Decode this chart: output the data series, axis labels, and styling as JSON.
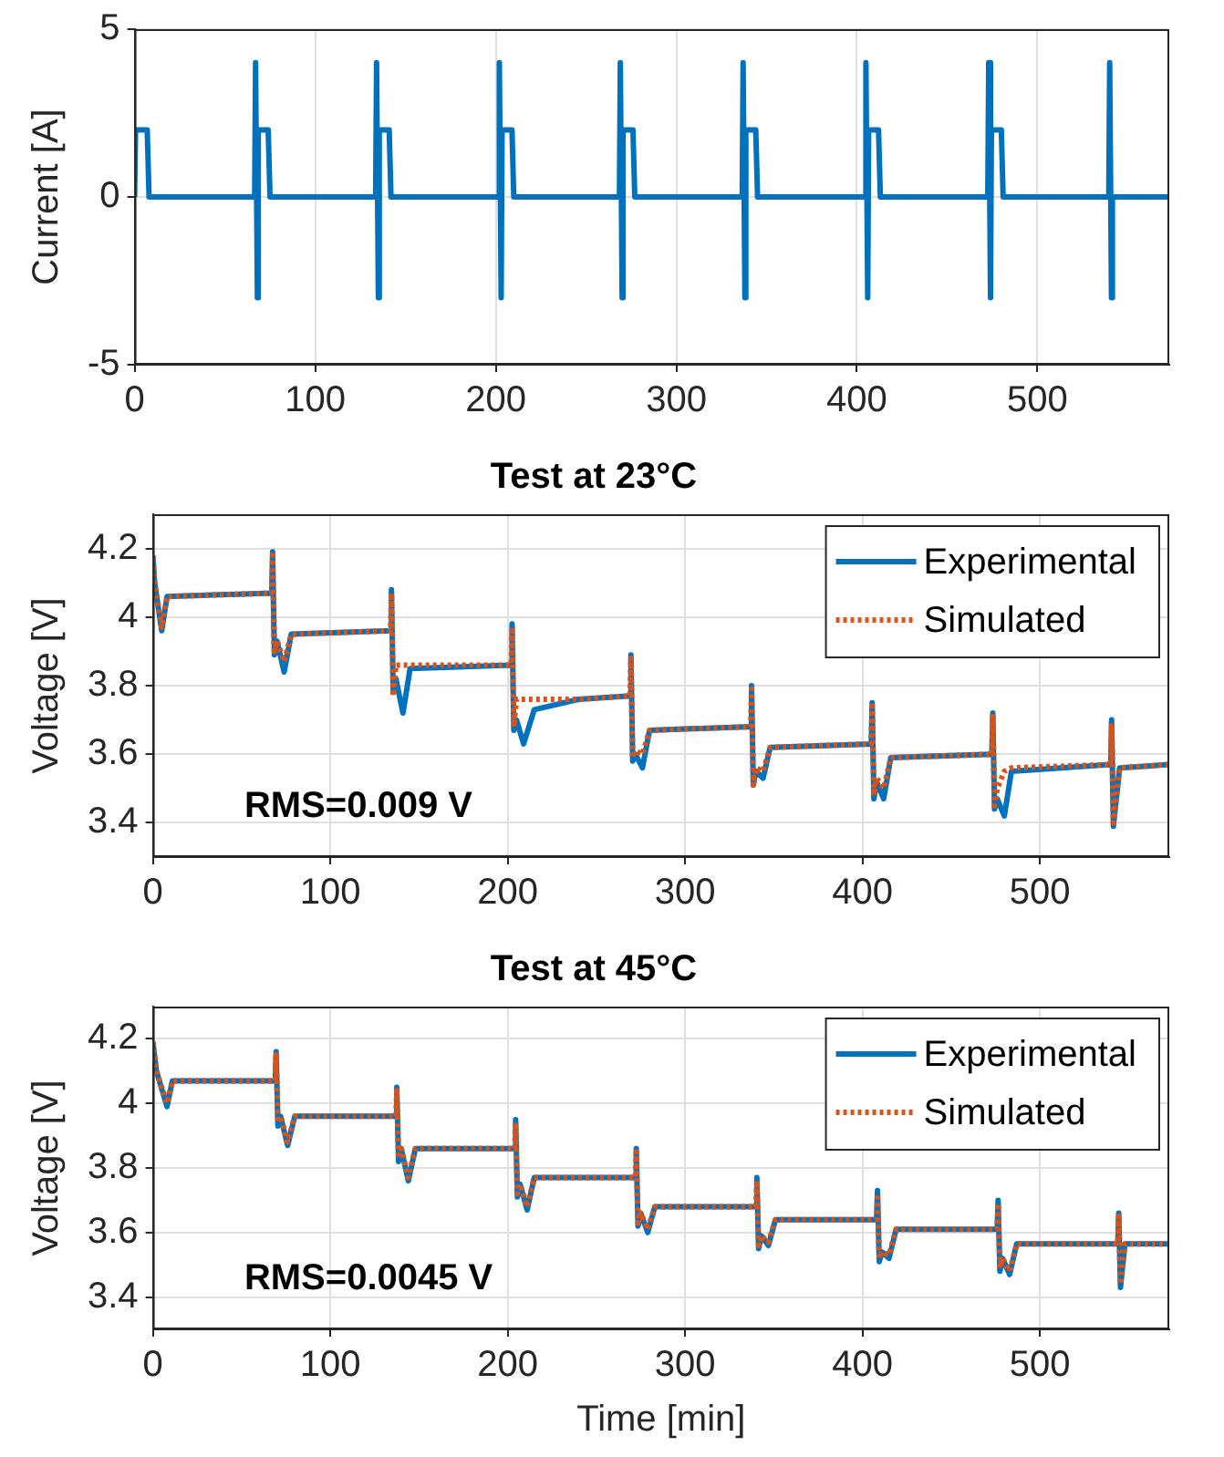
{
  "chart_data": [
    {
      "type": "line",
      "ylabel": "Current [A]",
      "xlim": [
        0,
        573
      ],
      "xticks": [
        0,
        100,
        200,
        300,
        400,
        500
      ],
      "ylim": [
        -5,
        5
      ],
      "yticks": [
        -5,
        0,
        5
      ],
      "grid": true,
      "legend": false,
      "marker": "none",
      "series": [
        {
          "color": "#0072bd",
          "line_style": "solid",
          "x": [
            0,
            0.5,
            7,
            8,
            66.5,
            67,
            68,
            68.5,
            74,
            75,
            133.5,
            134,
            135,
            135.5,
            141,
            142,
            201.5,
            202,
            203,
            203.5,
            209,
            210,
            268.5,
            269,
            270,
            270.5,
            276,
            277,
            336.5,
            337,
            338,
            338.5,
            344,
            345,
            404.5,
            405,
            406,
            406.5,
            412,
            413,
            472.5,
            473,
            474,
            474.5,
            480,
            481,
            539.5,
            540,
            541,
            541.5,
            573
          ],
          "values": [
            0,
            2,
            2,
            0,
            0,
            4,
            -3,
            2,
            2,
            0,
            0,
            4,
            -3,
            2,
            2,
            0,
            0,
            4,
            -3,
            2,
            2,
            0,
            0,
            4,
            -3,
            2,
            2,
            0,
            0,
            4,
            -3,
            2,
            2,
            0,
            0,
            4,
            -3,
            2,
            2,
            0,
            0,
            4,
            -3,
            2,
            2,
            0,
            0,
            4,
            -3,
            0,
            0
          ]
        }
      ]
    },
    {
      "type": "line",
      "title": "Test at 23°C",
      "ylabel": "Voltage [V]",
      "xlim": [
        0,
        573
      ],
      "xticks": [
        0,
        100,
        200,
        300,
        400,
        500
      ],
      "ylim": [
        3.3,
        4.3
      ],
      "yticks": [
        3.4,
        3.6,
        3.8,
        4,
        4.2
      ],
      "grid": true,
      "legend": "top right",
      "marker": "none",
      "annotations": [
        "RMS=0.009 V"
      ],
      "series": [
        {
          "name": "Experimental",
          "color": "#0072bd",
          "line_style": "solid",
          "x": [
            0,
            1,
            5,
            8,
            67,
            67.5,
            68.5,
            70,
            74,
            78,
            134,
            134.5,
            135.5,
            137,
            141,
            145,
            202,
            202.5,
            203.5,
            205,
            209,
            215,
            240,
            269,
            269.5,
            270.5,
            272,
            276,
            280,
            337,
            337.5,
            338.5,
            340,
            344,
            348,
            405,
            405.5,
            406.5,
            408,
            412,
            416,
            473,
            473.5,
            474.5,
            476,
            480,
            484,
            540,
            540.5,
            541.5,
            545,
            573
          ],
          "values": [
            4.18,
            4.1,
            3.96,
            4.06,
            4.07,
            4.19,
            3.89,
            3.93,
            3.84,
            3.95,
            3.96,
            4.08,
            3.78,
            3.82,
            3.72,
            3.85,
            3.86,
            3.98,
            3.67,
            3.7,
            3.63,
            3.73,
            3.76,
            3.77,
            3.89,
            3.58,
            3.6,
            3.56,
            3.67,
            3.68,
            3.8,
            3.51,
            3.55,
            3.53,
            3.62,
            3.63,
            3.75,
            3.47,
            3.52,
            3.47,
            3.59,
            3.6,
            3.72,
            3.44,
            3.47,
            3.42,
            3.55,
            3.57,
            3.7,
            3.39,
            3.56,
            3.57
          ]
        },
        {
          "name": "Simulated",
          "color": "#d95319",
          "line_style": "dotted",
          "x": [
            0,
            1,
            5,
            8,
            67,
            67.5,
            68.5,
            70,
            74,
            78,
            134,
            134.5,
            135.5,
            137,
            141,
            145,
            202,
            202.5,
            203.5,
            205,
            209,
            215,
            240,
            269,
            269.5,
            270.5,
            272,
            276,
            280,
            337,
            337.5,
            338.5,
            340,
            344,
            348,
            405,
            405.5,
            406.5,
            408,
            412,
            416,
            473,
            473.5,
            474.5,
            476,
            480,
            484,
            540,
            540.5,
            541.5,
            545,
            573
          ],
          "values": [
            4.17,
            4.1,
            3.97,
            4.06,
            4.07,
            4.18,
            3.9,
            3.93,
            3.87,
            3.95,
            3.96,
            4.07,
            3.77,
            3.86,
            3.86,
            3.86,
            3.86,
            3.97,
            3.68,
            3.76,
            3.76,
            3.76,
            3.76,
            3.77,
            3.88,
            3.59,
            3.61,
            3.6,
            3.67,
            3.68,
            3.79,
            3.51,
            3.56,
            3.55,
            3.62,
            3.63,
            3.74,
            3.48,
            3.53,
            3.5,
            3.59,
            3.6,
            3.71,
            3.45,
            3.5,
            3.55,
            3.56,
            3.57,
            3.69,
            3.4,
            3.56,
            3.57
          ]
        }
      ]
    },
    {
      "type": "line",
      "title": "Test at 45°C",
      "xlabel": "Time [min]",
      "ylabel": "Voltage [V]",
      "xlim": [
        0,
        573
      ],
      "xticks": [
        0,
        100,
        200,
        300,
        400,
        500
      ],
      "ylim": [
        3.3,
        4.3
      ],
      "yticks": [
        3.4,
        3.6,
        3.8,
        4,
        4.2
      ],
      "grid": true,
      "legend": "top right",
      "marker": "none",
      "annotations": [
        "RMS=0.0045 V"
      ],
      "series": [
        {
          "name": "Experimental",
          "color": "#0072bd",
          "line_style": "solid",
          "x": [
            0,
            2,
            8,
            11,
            69,
            69.5,
            70.5,
            72,
            76,
            80,
            137,
            137.5,
            138.5,
            140,
            144,
            148,
            204,
            204.5,
            205.5,
            207,
            211,
            215,
            272,
            272.5,
            273.5,
            275,
            279,
            283,
            340,
            340.5,
            341.5,
            343,
            347,
            351,
            408,
            408.5,
            409.5,
            411,
            415,
            419,
            476,
            476.5,
            477.5,
            479,
            483,
            487,
            544,
            544.5,
            545.5,
            548,
            573
          ],
          "values": [
            4.19,
            4.1,
            3.99,
            4.07,
            4.07,
            4.16,
            3.93,
            3.96,
            3.87,
            3.96,
            3.96,
            4.05,
            3.82,
            3.86,
            3.76,
            3.86,
            3.86,
            3.95,
            3.71,
            3.75,
            3.67,
            3.77,
            3.77,
            3.86,
            3.62,
            3.66,
            3.6,
            3.68,
            3.68,
            3.77,
            3.55,
            3.59,
            3.56,
            3.64,
            3.64,
            3.73,
            3.51,
            3.54,
            3.52,
            3.61,
            3.61,
            3.7,
            3.48,
            3.52,
            3.47,
            3.565,
            3.565,
            3.66,
            3.43,
            3.565,
            3.565
          ]
        },
        {
          "name": "Simulated",
          "color": "#d95319",
          "line_style": "dotted",
          "x": [
            0,
            2,
            8,
            11,
            69,
            69.5,
            70.5,
            72,
            76,
            80,
            137,
            137.5,
            138.5,
            140,
            144,
            148,
            204,
            204.5,
            205.5,
            207,
            211,
            215,
            272,
            272.5,
            273.5,
            275,
            279,
            283,
            340,
            340.5,
            341.5,
            343,
            347,
            351,
            408,
            408.5,
            409.5,
            411,
            415,
            419,
            476,
            476.5,
            477.5,
            479,
            483,
            487,
            544,
            544.5,
            545.5,
            548,
            573
          ],
          "values": [
            4.19,
            4.1,
            4.0,
            4.07,
            4.07,
            4.15,
            3.94,
            3.96,
            3.88,
            3.96,
            3.96,
            4.04,
            3.83,
            3.86,
            3.77,
            3.86,
            3.86,
            3.94,
            3.72,
            3.75,
            3.68,
            3.77,
            3.77,
            3.85,
            3.63,
            3.66,
            3.61,
            3.68,
            3.68,
            3.76,
            3.56,
            3.59,
            3.57,
            3.64,
            3.64,
            3.72,
            3.52,
            3.54,
            3.53,
            3.61,
            3.61,
            3.69,
            3.49,
            3.52,
            3.48,
            3.565,
            3.565,
            3.65,
            3.44,
            3.565,
            3.565
          ]
        }
      ]
    }
  ]
}
